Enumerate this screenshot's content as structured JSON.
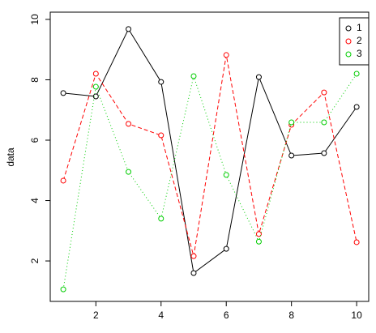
{
  "chart_data": {
    "type": "line",
    "y_label": "data",
    "x": [
      1,
      2,
      3,
      4,
      5,
      6,
      7,
      8,
      9,
      10
    ],
    "series": [
      {
        "name": "1",
        "color": "#000000",
        "linestyle": "solid",
        "values": [
          7.56,
          7.45,
          9.68,
          7.93,
          1.6,
          2.4,
          8.09,
          5.49,
          5.57,
          7.1
        ]
      },
      {
        "name": "2",
        "color": "#ff0000",
        "linestyle": "dashed",
        "values": [
          4.66,
          8.2,
          6.54,
          6.16,
          2.16,
          8.82,
          2.89,
          6.51,
          7.58,
          2.62
        ]
      },
      {
        "name": "3",
        "color": "#00cd00",
        "linestyle": "dotted",
        "values": [
          1.06,
          7.77,
          4.95,
          3.4,
          8.12,
          4.85,
          2.64,
          6.59,
          6.59,
          8.2
        ]
      }
    ],
    "xlim": [
      0.6,
      10.37
    ],
    "ylim": [
      0.66,
      10.24
    ],
    "xticks": [
      2,
      4,
      6,
      8,
      10
    ],
    "yticks": [
      2,
      4,
      6,
      8,
      10
    ],
    "legend": "top-right"
  }
}
